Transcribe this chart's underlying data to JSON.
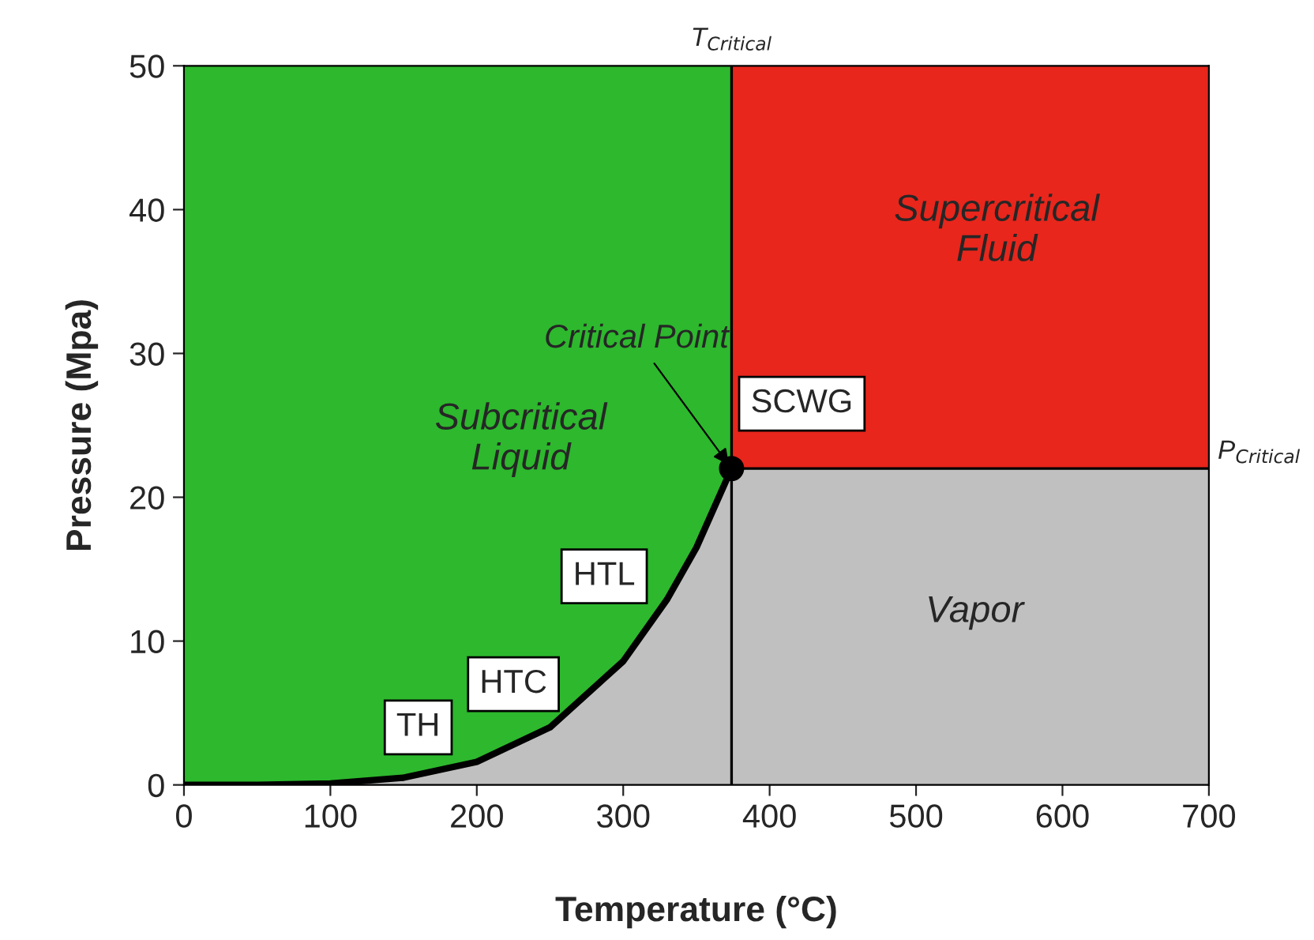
{
  "chart_data": {
    "type": "area",
    "xlabel": "Temperature (°C)",
    "ylabel": "Pressure (Mpa)",
    "xlim": [
      0,
      700
    ],
    "ylim": [
      0,
      50
    ],
    "xticks": [
      0,
      100,
      200,
      300,
      400,
      500,
      600,
      700
    ],
    "yticks": [
      0,
      10,
      20,
      30,
      40,
      50
    ],
    "grid": false,
    "legend": false,
    "bands": [
      {
        "axis": "x",
        "from": 0,
        "to": 374,
        "color": "#2db82d"
      },
      {
        "axis": "x",
        "from": 374,
        "to": 700,
        "color": "#e8261c"
      }
    ],
    "ref_lines": [
      {
        "axis": "x",
        "value": 374,
        "label": "T$_{Critical}$",
        "color": "#000000"
      }
    ],
    "series": [
      {
        "color": "#c0c0c0",
        "x": [
          0,
          50,
          100,
          150,
          200,
          250,
          300,
          330,
          350,
          374,
          700
        ],
        "values": [
          0,
          0,
          0.1,
          0.5,
          1.6,
          4,
          8.6,
          12.9,
          16.5,
          22,
          22
        ]
      },
      {
        "type": "scatter",
        "color": "#000000",
        "marker": "circle",
        "x": [
          374
        ],
        "values": [
          22
        ]
      }
    ],
    "annotations": [
      {
        "text": "Critical Point",
        "x": 374,
        "y": 22
      },
      "Subcritical\nLiquid",
      "Supercritical\nFluid",
      "Vapor",
      "TH",
      "HTC",
      "HTL",
      "SCWG",
      {
        "text": "P$_{Critical}$",
        "x": 700,
        "y": 22
      }
    ]
  }
}
